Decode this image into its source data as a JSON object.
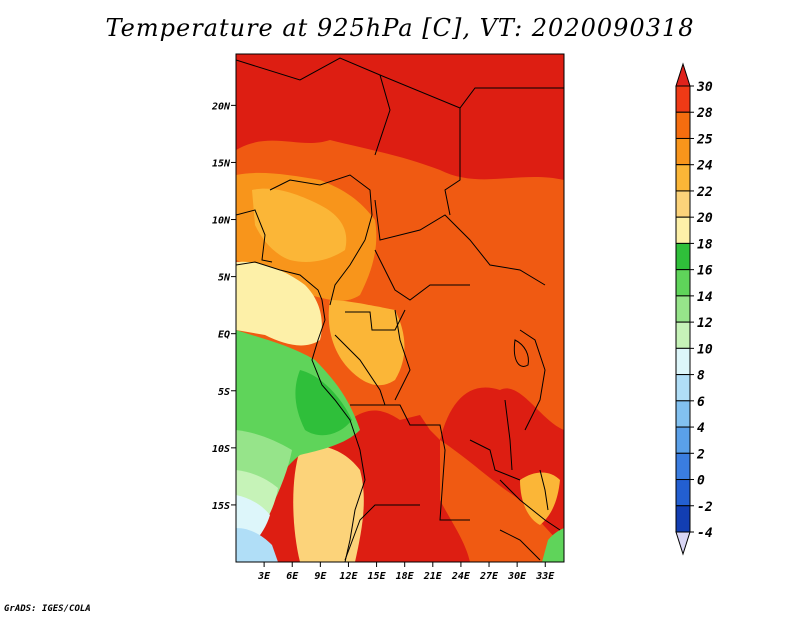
{
  "title": "Temperature at 925hPa [C], VT: 2020090318",
  "footer": "GrADS: IGES/COLA",
  "map": {
    "lat_ticks": [
      {
        "lat": 20,
        "label": "20N"
      },
      {
        "lat": 15,
        "label": "15N"
      },
      {
        "lat": 10,
        "label": "10N"
      },
      {
        "lat": 5,
        "label": "5N"
      },
      {
        "lat": 0,
        "label": "EQ"
      },
      {
        "lat": -5,
        "label": "5S"
      },
      {
        "lat": -10,
        "label": "10S"
      },
      {
        "lat": -15,
        "label": "15S"
      }
    ],
    "lon_ticks": [
      {
        "lon": 3,
        "label": "3E"
      },
      {
        "lon": 6,
        "label": "6E"
      },
      {
        "lon": 9,
        "label": "9E"
      },
      {
        "lon": 12,
        "label": "12E"
      },
      {
        "lon": 15,
        "label": "15E"
      },
      {
        "lon": 18,
        "label": "18E"
      },
      {
        "lon": 21,
        "label": "21E"
      },
      {
        "lon": 24,
        "label": "24E"
      },
      {
        "lon": 27,
        "label": "27E"
      },
      {
        "lon": 30,
        "label": "30E"
      },
      {
        "lon": 33,
        "label": "33E"
      }
    ]
  },
  "colorbar": {
    "labels": [
      "30",
      "28",
      "25",
      "24",
      "22",
      "20",
      "18",
      "16",
      "14",
      "12",
      "10",
      "8",
      "6",
      "4",
      "2",
      "0",
      "-2",
      "-4"
    ],
    "colors": [
      "#e0231c",
      "#ef3a16",
      "#f56d0f",
      "#f8951b",
      "#fbb637",
      "#fcd37a",
      "#fdf0a8",
      "#2fbf3a",
      "#5fd45a",
      "#96e48a",
      "#c6f3b8",
      "#ddf6fa",
      "#b0def7",
      "#82c1f0",
      "#5aa0e9",
      "#3a7de0",
      "#235fd1",
      "#123eb2",
      "#0c1a80"
    ]
  },
  "colors": {
    "hot": "#dd1e12",
    "warm": "#f05a12",
    "mild": "#fbb64a",
    "cool": "#5fd45a",
    "border": "#000000"
  }
}
